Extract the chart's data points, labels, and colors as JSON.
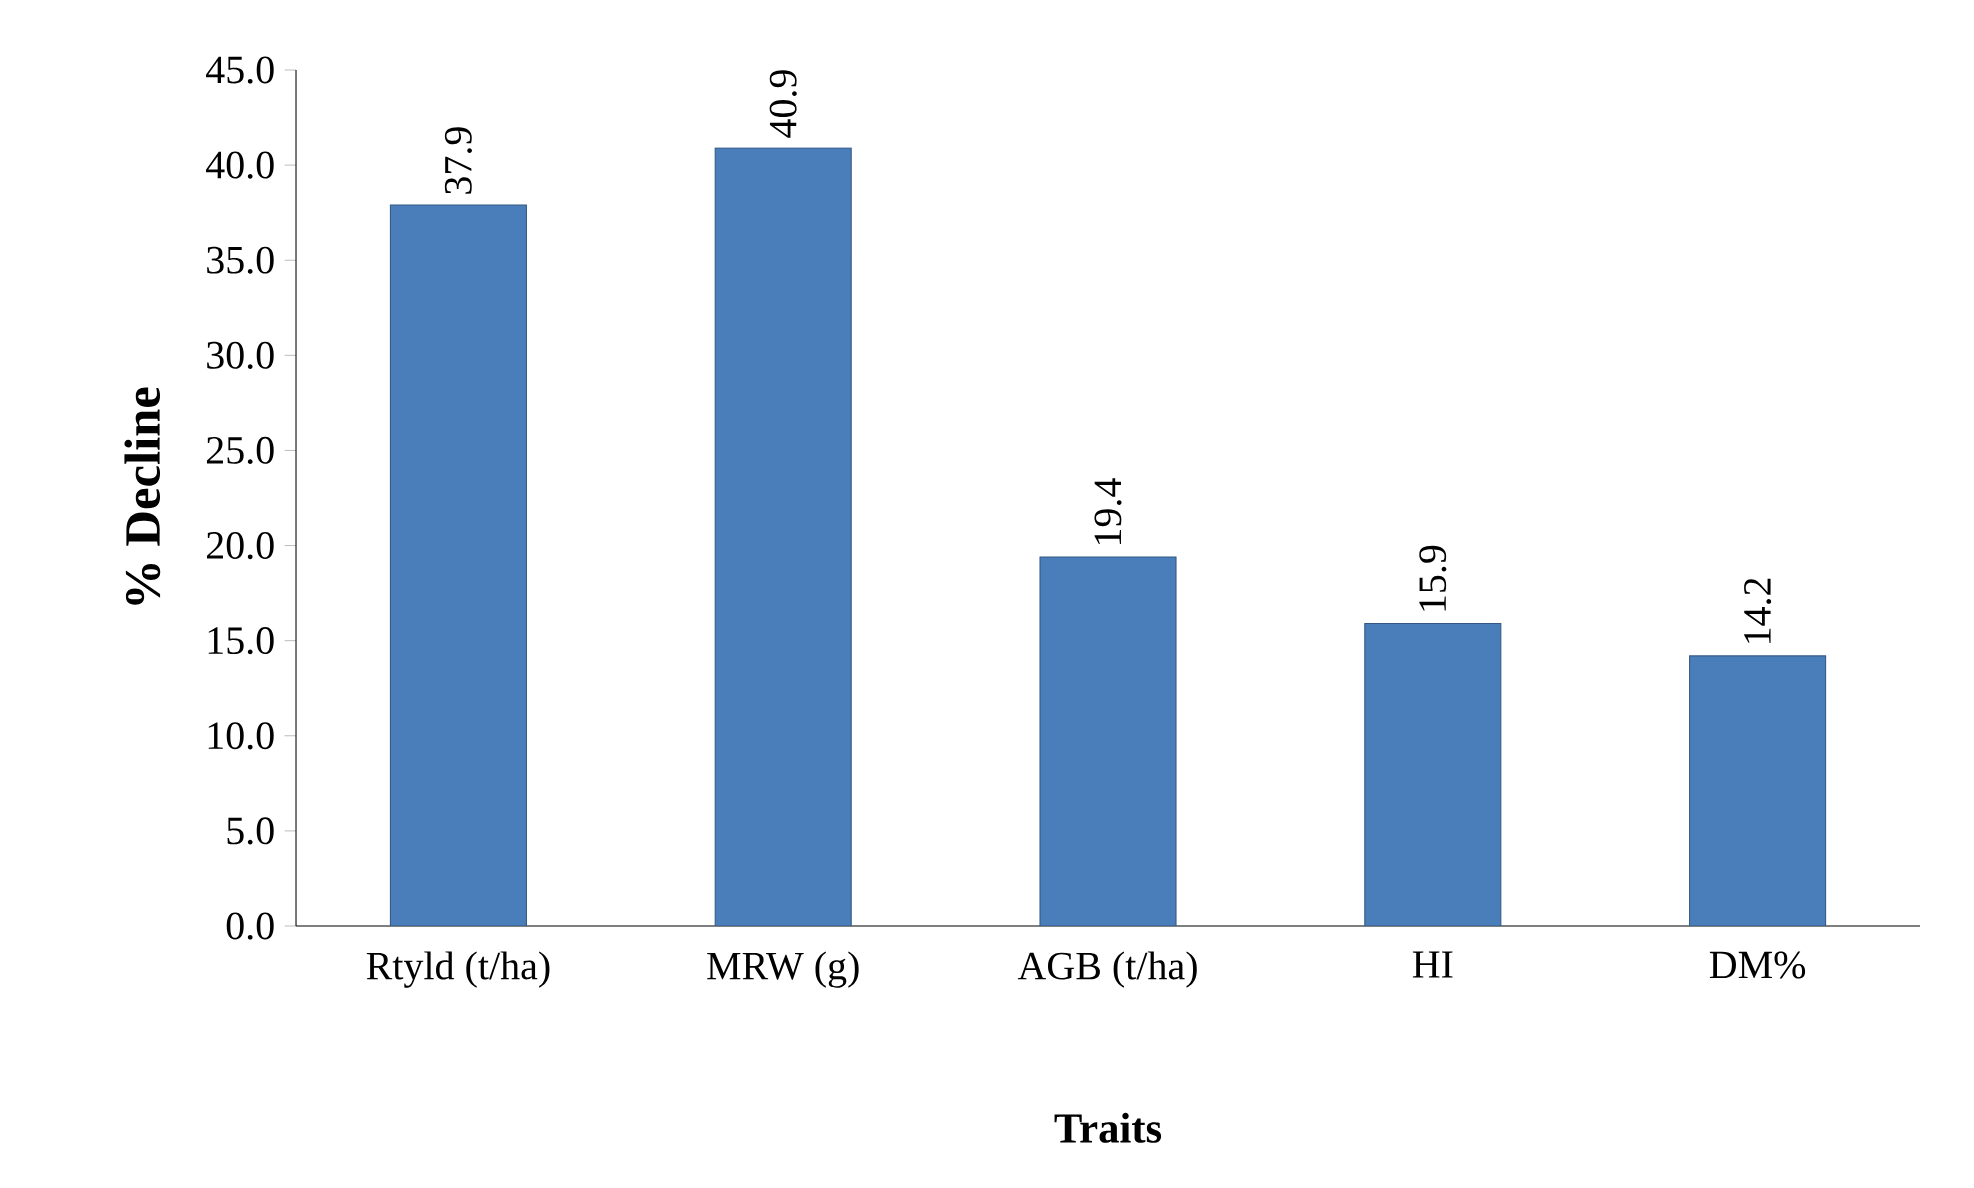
{
  "chart_data": {
    "type": "bar",
    "xlabel": "Traits",
    "ylabel": "% Decline",
    "categories": [
      "Rtyld (t/ha)",
      "MRW (g)",
      "AGB (t/ha)",
      "HI",
      "DM%"
    ],
    "values": [
      37.9,
      40.9,
      19.4,
      15.9,
      14.2
    ],
    "color": "#4a7ebb",
    "ylim": [
      0,
      45
    ],
    "yticks": [
      {
        "value": 0,
        "label": "0.0"
      },
      {
        "value": 5,
        "label": "5.0"
      },
      {
        "value": 10,
        "label": "10.0"
      },
      {
        "value": 15,
        "label": "15.0"
      },
      {
        "value": 20,
        "label": "20.0"
      },
      {
        "value": 25,
        "label": "25.0"
      },
      {
        "value": 30,
        "label": "30.0"
      },
      {
        "value": 35,
        "label": "35.0"
      },
      {
        "value": 40,
        "label": "40.0"
      },
      {
        "value": 45,
        "label": "45.0"
      }
    ],
    "data_labels": true
  }
}
